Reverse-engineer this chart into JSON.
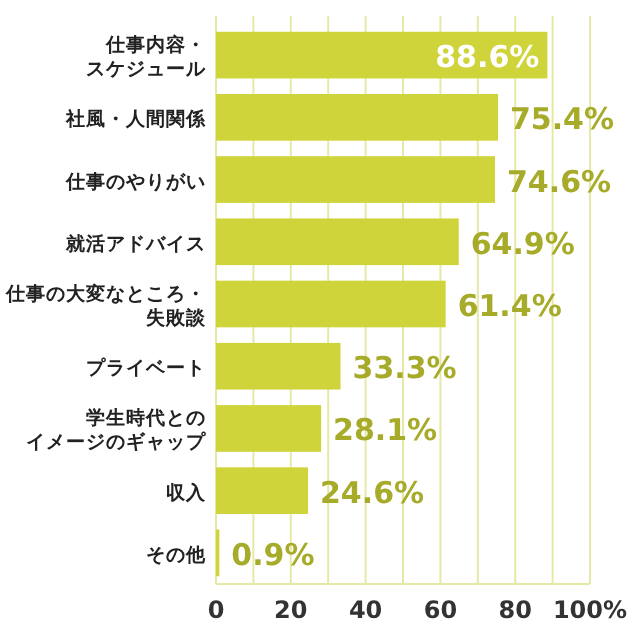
{
  "chart_data": {
    "type": "bar",
    "orientation": "horizontal",
    "categories": [
      "仕事内容・スケジュール",
      "社風・人間関係",
      "仕事のやりがい",
      "就活アドバイス",
      "仕事の大変なところ・失敗談",
      "プライベート",
      "学生時代とのイメージのギャップ",
      "収入",
      "その他"
    ],
    "values": [
      88.6,
      75.4,
      74.6,
      64.9,
      61.4,
      33.3,
      28.1,
      24.6,
      0.9
    ],
    "value_labels": [
      "88.6%",
      "75.4%",
      "74.6%",
      "64.9%",
      "61.4%",
      "33.3%",
      "28.1%",
      "24.6%",
      "0.9%"
    ],
    "color": "#cfd43a",
    "xlim": [
      0,
      100
    ],
    "xticks": [
      0,
      {
        "value": 10,
        "label": null
      },
      20,
      {
        "value": 30,
        "label": null
      },
      40,
      {
        "value": 50,
        "label": null
      },
      60,
      {
        "value": 70,
        "label": null
      },
      80,
      {
        "value": 90,
        "label": null
      },
      {
        "value": 100,
        "label": "100%"
      }
    ],
    "grid": "x"
  }
}
